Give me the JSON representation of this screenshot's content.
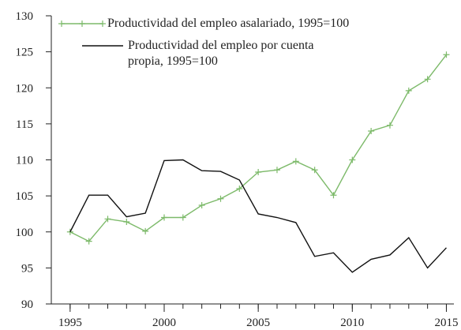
{
  "chart_data": {
    "type": "line",
    "x": [
      1995,
      1996,
      1997,
      1998,
      1999,
      2000,
      2001,
      2002,
      2003,
      2004,
      2005,
      2006,
      2007,
      2008,
      2009,
      2010,
      2011,
      2012,
      2013,
      2014,
      2015
    ],
    "series": [
      {
        "name": "Productividad del empleo asalariado, 1995=100",
        "color": "#7dba6a",
        "marker": "+",
        "values": [
          100,
          98.7,
          101.8,
          101.4,
          100.1,
          102,
          102,
          103.7,
          104.6,
          106,
          108.3,
          108.6,
          109.8,
          108.6,
          105.1,
          110,
          114,
          114.8,
          119.6,
          121.2,
          124.6
        ]
      },
      {
        "name": "Productividad del empleo por cuenta propia, 1995=100",
        "color": "#111111",
        "values": [
          100,
          105.1,
          105.1,
          102.1,
          102.6,
          109.9,
          110,
          108.5,
          108.4,
          107.2,
          102.5,
          102,
          101.3,
          96.6,
          97.1,
          94.4,
          96.2,
          96.8,
          99.2,
          95,
          97.8
        ]
      }
    ],
    "xlim": [
      1994,
      2015.4
    ],
    "xticks": [
      1995,
      2000,
      2005,
      2010,
      2015
    ],
    "ylim": [
      90,
      130
    ],
    "yticks": [
      90,
      95,
      100,
      105,
      110,
      115,
      120,
      125,
      130
    ]
  }
}
